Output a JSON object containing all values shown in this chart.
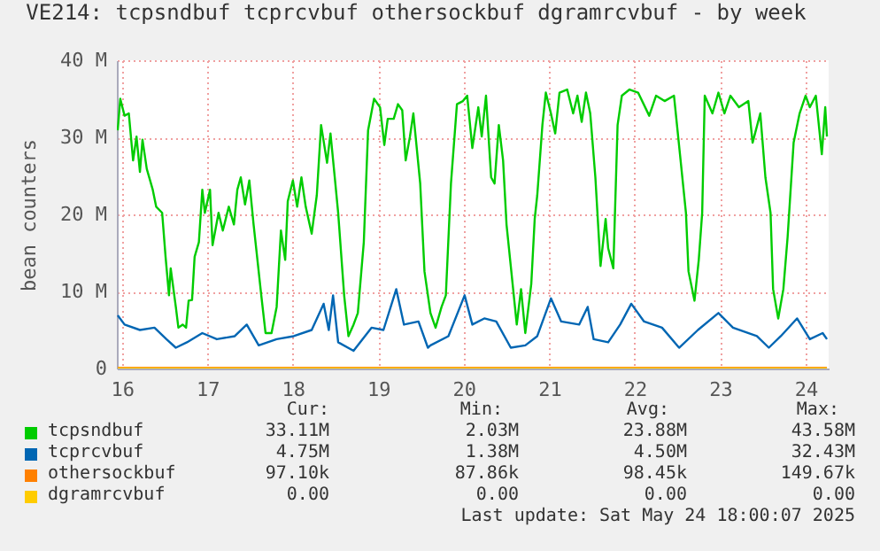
{
  "chart_data": {
    "type": "line",
    "title": "VE214: tcpsndbuf tcprcvbuf othersockbuf dgramrcvbuf - by week",
    "ylabel": "bean counters",
    "xlim": [
      15.94,
      24.27
    ],
    "xticks": [
      16,
      17,
      18,
      19,
      20,
      21,
      22,
      23,
      24
    ],
    "ylim": [
      0,
      40
    ],
    "yticks": [
      {
        "value": 0,
        "label": "0"
      },
      {
        "value": 10,
        "label": "10 M"
      },
      {
        "value": 20,
        "label": "20 M"
      },
      {
        "value": 30,
        "label": "30 M"
      },
      {
        "value": 40,
        "label": "40 M"
      }
    ],
    "grid": true,
    "legend": "bottom left",
    "series": [
      {
        "name": "tcpsndbuf",
        "color": "#00cc00",
        "x": [
          15.95,
          15.98,
          16.03,
          16.08,
          16.13,
          16.17,
          16.21,
          16.24,
          16.29,
          16.36,
          16.4,
          16.47,
          16.51,
          16.55,
          16.57,
          16.63,
          16.66,
          16.71,
          16.75,
          16.78,
          16.82,
          16.85,
          16.9,
          16.94,
          16.97,
          17.03,
          17.06,
          17.13,
          17.18,
          17.25,
          17.31,
          17.35,
          17.39,
          17.44,
          17.49,
          17.54,
          17.63,
          17.68,
          17.75,
          17.81,
          17.86,
          17.91,
          17.94,
          18.0,
          18.05,
          18.1,
          18.15,
          18.22,
          18.28,
          18.33,
          18.4,
          18.44,
          18.49,
          18.53,
          18.6,
          18.65,
          18.71,
          18.76,
          18.83,
          18.88,
          18.95,
          19.02,
          19.07,
          19.11,
          19.18,
          19.23,
          19.28,
          19.32,
          19.37,
          19.41,
          19.49,
          19.54,
          19.61,
          19.67,
          19.74,
          19.79,
          19.85,
          19.92,
          19.99,
          20.04,
          20.1,
          20.17,
          20.21,
          20.26,
          20.32,
          20.36,
          20.41,
          20.46,
          20.5,
          20.55,
          20.62,
          20.67,
          20.72,
          20.79,
          20.83,
          20.86,
          20.92,
          20.96,
          21.02,
          21.07,
          21.12,
          21.21,
          21.28,
          21.33,
          21.38,
          21.43,
          21.48,
          21.54,
          21.6,
          21.66,
          21.69,
          21.75,
          21.8,
          21.85,
          21.94,
          22.04,
          22.17,
          22.25,
          22.35,
          22.46,
          22.53,
          22.6,
          22.63,
          22.7,
          22.75,
          22.79,
          22.82,
          22.91,
          22.98,
          23.05,
          23.12,
          23.22,
          23.33,
          23.38,
          23.47,
          23.53,
          23.59,
          23.62,
          23.68,
          23.74,
          23.79,
          23.86,
          23.93,
          24.0,
          24.05,
          24.12,
          24.19,
          24.23,
          24.25
        ],
        "values": [
          30.9,
          35.0,
          32.8,
          33.1,
          27.0,
          30.1,
          25.5,
          29.7,
          25.9,
          23.2,
          21.0,
          20.2,
          14.5,
          9.5,
          13.0,
          8.0,
          5.3,
          5.7,
          5.3,
          8.8,
          8.9,
          14.5,
          16.4,
          23.2,
          20.2,
          23.2,
          16.0,
          20.2,
          17.9,
          21.0,
          18.7,
          23.2,
          24.8,
          21.3,
          24.4,
          18.7,
          9.5,
          4.6,
          4.6,
          8.0,
          17.9,
          14.1,
          21.7,
          24.4,
          21.0,
          24.8,
          21.0,
          17.5,
          22.5,
          31.6,
          26.7,
          30.5,
          24.8,
          20.2,
          9.5,
          4.2,
          5.7,
          7.2,
          16.4,
          30.9,
          35.0,
          33.9,
          29.0,
          32.4,
          32.4,
          34.3,
          33.5,
          27.0,
          30.1,
          33.1,
          24.0,
          12.6,
          7.2,
          5.3,
          8.0,
          9.5,
          24.0,
          34.3,
          34.7,
          35.4,
          28.6,
          33.9,
          30.1,
          35.4,
          24.8,
          24.0,
          31.6,
          27.0,
          18.7,
          13.3,
          5.7,
          10.3,
          4.6,
          11.0,
          19.4,
          22.5,
          31.6,
          35.8,
          33.1,
          30.5,
          35.8,
          36.2,
          33.1,
          35.4,
          32.0,
          35.8,
          33.1,
          24.8,
          13.3,
          19.4,
          15.6,
          13.0,
          31.6,
          35.4,
          36.2,
          35.8,
          32.8,
          35.4,
          34.7,
          35.4,
          27.8,
          20.2,
          12.6,
          8.8,
          14.1,
          20.2,
          35.4,
          33.1,
          35.8,
          33.1,
          35.4,
          33.9,
          34.7,
          29.3,
          33.1,
          24.8,
          20.2,
          10.3,
          6.5,
          10.3,
          17.1,
          29.3,
          33.1,
          35.4,
          33.9,
          35.4,
          27.8,
          33.9,
          30.1
        ]
      },
      {
        "name": "tcprcvbuf",
        "color": "#0066b3",
        "x": [
          15.95,
          16.03,
          16.21,
          16.38,
          16.52,
          16.63,
          16.76,
          16.94,
          17.11,
          17.32,
          17.46,
          17.6,
          17.81,
          18.01,
          18.22,
          18.36,
          18.42,
          18.47,
          18.53,
          18.71,
          18.92,
          19.06,
          19.21,
          19.3,
          19.47,
          19.58,
          19.61,
          19.82,
          20.01,
          20.1,
          20.24,
          20.38,
          20.55,
          20.72,
          20.86,
          21.02,
          21.14,
          21.35,
          21.45,
          21.52,
          21.69,
          21.83,
          21.96,
          22.11,
          22.32,
          22.52,
          22.74,
          22.98,
          23.15,
          23.43,
          23.57,
          23.71,
          23.9,
          24.05,
          24.2,
          24.25
        ],
        "values": [
          6.9,
          5.7,
          5.0,
          5.3,
          3.8,
          2.7,
          3.4,
          4.6,
          3.8,
          4.2,
          5.7,
          3.0,
          3.8,
          4.2,
          5.0,
          8.4,
          5.0,
          9.5,
          3.4,
          2.3,
          5.3,
          5.0,
          10.3,
          5.7,
          6.1,
          2.7,
          3.0,
          4.2,
          9.5,
          5.7,
          6.5,
          6.1,
          2.7,
          3.0,
          4.2,
          9.1,
          6.1,
          5.7,
          8.0,
          3.8,
          3.4,
          5.7,
          8.4,
          6.1,
          5.3,
          2.7,
          5.0,
          7.2,
          5.3,
          4.2,
          2.7,
          4.2,
          6.5,
          3.8,
          4.6,
          3.8
        ]
      },
      {
        "name": "othersockbuf",
        "color": "#ff8000",
        "x": [
          15.95,
          24.25
        ],
        "values": [
          0.1,
          0.1
        ]
      },
      {
        "name": "dgramrcvbuf",
        "color": "#ffcc00",
        "x": [
          15.95,
          24.25
        ],
        "values": [
          0,
          0
        ]
      }
    ],
    "annotations": [
      "Cur:",
      "Min:",
      "Avg:",
      "Max:",
      "33.11M",
      "2.03M",
      "23.88M",
      "43.58M",
      "4.75M",
      "1.38M",
      "4.50M",
      "32.43M",
      "97.10k",
      "87.86k",
      "98.45k",
      "149.67k",
      "0.00",
      "0.00",
      "0.00",
      "0.00",
      "Last update: Sat May 24 18:00:07 2025"
    ]
  }
}
